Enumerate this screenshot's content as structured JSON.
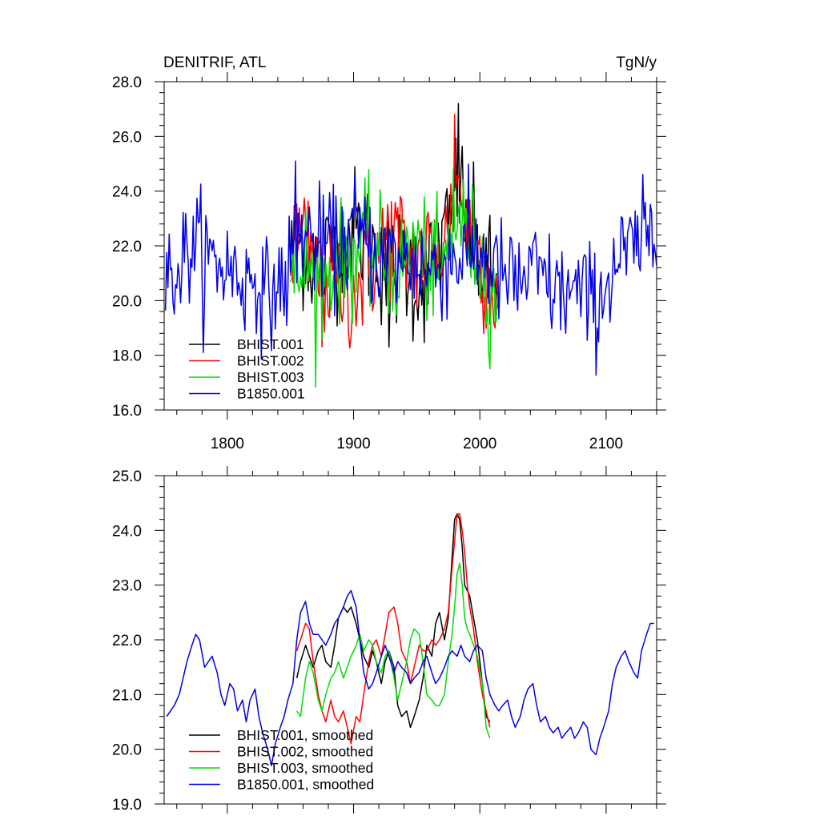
{
  "chart_data": [
    {
      "type": "line",
      "title": "DENITRIF, ATL",
      "units": "TgN/y",
      "xlabel": "",
      "ylabel": "",
      "xlim": [
        1750,
        2140
      ],
      "ylim": [
        16.0,
        28.0
      ],
      "x_ticks": [
        1800,
        1900,
        2000,
        2100
      ],
      "x_tick_labels": [
        "1800",
        "1900",
        "2000",
        "2100"
      ],
      "y_ticks": [
        16,
        18,
        20,
        22,
        24,
        26,
        28
      ],
      "y_tick_labels": [
        "16.0",
        "18.0",
        "20.0",
        "22.0",
        "24.0",
        "26.0",
        "28.0"
      ],
      "grid": false,
      "legend_position": "bottom-left",
      "series": [
        {
          "name": "BHIST.001",
          "color": "#000000",
          "x_start": 1850,
          "x_end": 2014,
          "x_step": 1,
          "anchors_x": [
            1850,
            1860,
            1870,
            1880,
            1890,
            1900,
            1910,
            1920,
            1930,
            1940,
            1950,
            1960,
            1970,
            1975,
            1980,
            1983,
            1986,
            1990,
            1995,
            2000,
            2005,
            2010,
            2014
          ],
          "anchors_y": [
            21.8,
            22.0,
            21.3,
            21.6,
            22.3,
            22.6,
            22.2,
            21.5,
            21.0,
            21.4,
            20.6,
            21.0,
            22.1,
            22.5,
            23.9,
            24.3,
            23.6,
            22.5,
            22.2,
            21.6,
            20.8,
            20.6,
            20.2
          ],
          "peak_x": 1983,
          "peak_y": 27.2,
          "min_x": 1928,
          "min_y": 18.3,
          "amp": 1.15
        },
        {
          "name": "BHIST.002",
          "color": "#ff0000",
          "x_start": 1850,
          "x_end": 2014,
          "x_step": 1,
          "anchors_x": [
            1850,
            1858,
            1866,
            1875,
            1885,
            1895,
            1900,
            1910,
            1920,
            1928,
            1935,
            1945,
            1955,
            1965,
            1975,
            1980,
            1983,
            1986,
            1990,
            1995,
            2000,
            2005,
            2010
          ],
          "anchors_y": [
            21.9,
            22.4,
            21.6,
            20.8,
            20.6,
            20.4,
            20.3,
            21.0,
            21.7,
            22.5,
            22.3,
            21.5,
            21.8,
            21.8,
            22.4,
            23.8,
            24.3,
            23.8,
            22.8,
            22.1,
            21.6,
            20.9,
            20.4
          ],
          "peak_x": 1980,
          "peak_y": 26.8,
          "min_x": 1875,
          "min_y": 18.3,
          "amp": 1.1
        },
        {
          "name": "BHIST.003",
          "color": "#00dd00",
          "x_start": 1850,
          "x_end": 2014,
          "x_step": 1,
          "anchors_x": [
            1850,
            1855,
            1862,
            1870,
            1880,
            1890,
            1900,
            1908,
            1915,
            1925,
            1935,
            1945,
            1950,
            1960,
            1970,
            1978,
            1982,
            1987,
            1995,
            2000,
            2005,
            2010
          ],
          "anchors_y": [
            20.7,
            20.6,
            21.6,
            20.5,
            21.0,
            21.4,
            21.6,
            22.1,
            21.8,
            21.6,
            21.0,
            21.8,
            22.2,
            21.2,
            21.0,
            22.4,
            23.4,
            22.6,
            22.0,
            21.6,
            20.4,
            20.2
          ],
          "peak_x": 1979,
          "peak_y": 24.8,
          "min_x": 2008,
          "min_y": 17.5,
          "amp": 1.05
        },
        {
          "name": "B1850.001",
          "color": "#0000ee",
          "x_start": 1751,
          "x_end": 2140,
          "x_step": 1,
          "anchors_x": [
            1751,
            1760,
            1770,
            1778,
            1785,
            1795,
            1805,
            1815,
            1823,
            1830,
            1838,
            1845,
            1850,
            1858,
            1865,
            1875,
            1885,
            1895,
            1900,
            1910,
            1920,
            1930,
            1940,
            1950,
            1960,
            1970,
            1980,
            1990,
            2000,
            2010,
            2020,
            2030,
            2040,
            2050,
            2060,
            2070,
            2080,
            2093,
            2100,
            2110,
            2120,
            2130,
            2136
          ],
          "anchors_y": [
            20.6,
            21.1,
            21.9,
            22.0,
            21.5,
            21.3,
            21.1,
            20.6,
            21.0,
            20.1,
            20.4,
            20.6,
            21.3,
            22.6,
            22.2,
            22.0,
            22.0,
            22.2,
            22.7,
            22.1,
            21.6,
            21.6,
            21.4,
            21.5,
            21.0,
            21.3,
            21.6,
            21.7,
            21.8,
            21.2,
            20.8,
            20.6,
            21.0,
            20.8,
            20.3,
            20.3,
            20.2,
            19.9,
            20.6,
            21.5,
            21.8,
            22.2,
            22.3
          ],
          "peak_x": 1854,
          "peak_y": 25.1,
          "min_x": 1781,
          "min_y": 18.1,
          "amp": 1.0
        }
      ]
    },
    {
      "type": "line",
      "title": "",
      "xlabel": "",
      "ylabel": "",
      "xlim": [
        1750,
        2140
      ],
      "ylim": [
        19.0,
        25.0
      ],
      "x_ticks": [
        1800,
        1900,
        2000,
        2100
      ],
      "x_tick_labels": [],
      "y_ticks": [
        19,
        20,
        21,
        22,
        23,
        24,
        25
      ],
      "y_tick_labels": [
        "19.0",
        "20.0",
        "21.0",
        "22.0",
        "23.0",
        "24.0",
        "25.0"
      ],
      "grid": false,
      "legend_position": "bottom-left",
      "series": [
        {
          "name": "BHIST.001, smoothed",
          "color": "#000000",
          "x": [
            1855,
            1858,
            1862,
            1865,
            1868,
            1872,
            1875,
            1878,
            1882,
            1885,
            1888,
            1892,
            1895,
            1898,
            1902,
            1905,
            1908,
            1912,
            1915,
            1918,
            1922,
            1925,
            1928,
            1932,
            1935,
            1938,
            1942,
            1945,
            1948,
            1952,
            1955,
            1958,
            1962,
            1965,
            1968,
            1972,
            1975,
            1978,
            1980,
            1982,
            1984,
            1986,
            1988,
            1990,
            1992,
            1995,
            1998,
            2002,
            2005,
            2008
          ],
          "y": [
            21.3,
            21.6,
            21.9,
            21.7,
            21.5,
            21.8,
            21.9,
            21.6,
            21.5,
            21.9,
            22.4,
            22.6,
            22.5,
            22.6,
            22.3,
            22.0,
            21.7,
            21.5,
            21.8,
            21.6,
            21.2,
            21.6,
            21.8,
            21.5,
            20.8,
            20.6,
            20.7,
            20.4,
            20.6,
            20.9,
            21.3,
            21.9,
            21.7,
            22.3,
            22.5,
            22.0,
            22.4,
            23.5,
            24.2,
            24.3,
            24.2,
            23.7,
            23.0,
            22.9,
            22.8,
            22.4,
            22.0,
            21.2,
            20.6,
            20.5
          ]
        },
        {
          "name": "BHIST.002, smoothed",
          "color": "#ff0000",
          "x": [
            1855,
            1858,
            1862,
            1865,
            1868,
            1872,
            1875,
            1878,
            1882,
            1885,
            1888,
            1892,
            1895,
            1898,
            1902,
            1905,
            1908,
            1912,
            1915,
            1918,
            1922,
            1925,
            1928,
            1932,
            1935,
            1938,
            1942,
            1945,
            1948,
            1952,
            1955,
            1958,
            1962,
            1965,
            1968,
            1972,
            1975,
            1978,
            1980,
            1982,
            1984,
            1986,
            1988,
            1990,
            1992,
            1995,
            1998,
            2002,
            2005,
            2008
          ],
          "y": [
            21.8,
            22.0,
            22.3,
            22.2,
            21.6,
            21.0,
            20.7,
            20.5,
            20.9,
            20.6,
            20.5,
            20.7,
            20.4,
            20.1,
            20.6,
            20.5,
            21.0,
            21.6,
            21.9,
            22.0,
            21.7,
            22.1,
            22.5,
            22.6,
            22.3,
            21.8,
            21.6,
            21.2,
            21.5,
            21.9,
            21.8,
            21.8,
            22.0,
            21.9,
            22.0,
            22.2,
            22.5,
            23.3,
            23.8,
            24.3,
            24.3,
            24.0,
            23.6,
            23.0,
            22.6,
            22.2,
            21.6,
            21.0,
            20.7,
            20.4
          ]
        },
        {
          "name": "BHIST.003, smoothed",
          "color": "#00dd00",
          "x": [
            1855,
            1858,
            1862,
            1865,
            1868,
            1872,
            1875,
            1878,
            1882,
            1885,
            1888,
            1892,
            1895,
            1898,
            1902,
            1905,
            1908,
            1912,
            1915,
            1918,
            1922,
            1925,
            1928,
            1932,
            1935,
            1938,
            1942,
            1945,
            1948,
            1952,
            1955,
            1958,
            1962,
            1965,
            1968,
            1972,
            1975,
            1978,
            1980,
            1982,
            1984,
            1986,
            1988,
            1990,
            1992,
            1995,
            1998,
            2002,
            2005,
            2008
          ],
          "y": [
            20.7,
            20.6,
            21.3,
            21.6,
            21.4,
            20.9,
            20.7,
            21.0,
            21.3,
            21.4,
            21.6,
            21.3,
            21.5,
            21.7,
            21.9,
            22.1,
            21.8,
            22.0,
            21.9,
            21.6,
            21.4,
            21.7,
            21.8,
            21.3,
            20.9,
            21.2,
            21.6,
            22.0,
            22.2,
            22.1,
            21.6,
            21.0,
            20.9,
            20.8,
            20.8,
            21.0,
            21.6,
            22.1,
            22.6,
            23.2,
            23.4,
            23.0,
            22.4,
            22.2,
            22.1,
            21.9,
            21.7,
            21.2,
            20.4,
            20.2
          ]
        },
        {
          "name": "B1850.001, smoothed",
          "color": "#0000ee",
          "x": [
            1752,
            1755,
            1758,
            1762,
            1765,
            1768,
            1772,
            1775,
            1778,
            1782,
            1785,
            1788,
            1792,
            1795,
            1798,
            1802,
            1805,
            1808,
            1812,
            1815,
            1818,
            1822,
            1825,
            1828,
            1832,
            1835,
            1838,
            1842,
            1845,
            1848,
            1852,
            1855,
            1858,
            1862,
            1865,
            1868,
            1872,
            1875,
            1878,
            1882,
            1885,
            1888,
            1892,
            1895,
            1898,
            1902,
            1905,
            1908,
            1912,
            1915,
            1918,
            1922,
            1925,
            1928,
            1932,
            1935,
            1938,
            1942,
            1945,
            1948,
            1952,
            1955,
            1958,
            1962,
            1965,
            1968,
            1972,
            1975,
            1978,
            1982,
            1985,
            1988,
            1992,
            1995,
            1998,
            2002,
            2005,
            2008,
            2012,
            2015,
            2018,
            2022,
            2025,
            2028,
            2032,
            2035,
            2038,
            2042,
            2045,
            2048,
            2052,
            2055,
            2058,
            2062,
            2065,
            2068,
            2072,
            2075,
            2078,
            2082,
            2085,
            2088,
            2092,
            2095,
            2098,
            2102,
            2105,
            2108,
            2112,
            2115,
            2118,
            2122,
            2125,
            2128,
            2132,
            2135,
            2138
          ],
          "y": [
            20.6,
            20.7,
            20.8,
            21.0,
            21.3,
            21.6,
            21.9,
            22.1,
            22.0,
            21.5,
            21.6,
            21.7,
            21.4,
            21.0,
            20.8,
            21.2,
            21.1,
            20.7,
            20.9,
            20.5,
            20.9,
            21.1,
            20.6,
            20.3,
            20.0,
            19.7,
            20.1,
            20.4,
            20.6,
            20.9,
            21.2,
            22.0,
            22.5,
            22.7,
            22.3,
            22.1,
            22.1,
            22.0,
            21.9,
            22.1,
            22.3,
            22.4,
            22.6,
            22.8,
            22.9,
            22.6,
            22.0,
            21.4,
            21.1,
            21.2,
            21.4,
            21.7,
            21.9,
            21.7,
            21.4,
            21.6,
            21.5,
            21.4,
            21.2,
            21.3,
            21.4,
            21.6,
            21.7,
            21.4,
            21.2,
            21.3,
            21.5,
            21.7,
            21.8,
            21.7,
            21.9,
            21.7,
            21.6,
            21.8,
            21.9,
            21.8,
            21.3,
            21.0,
            20.8,
            20.7,
            20.8,
            20.9,
            20.6,
            20.4,
            20.6,
            20.9,
            21.1,
            21.2,
            20.8,
            20.5,
            20.6,
            20.4,
            20.3,
            20.4,
            20.2,
            20.3,
            20.4,
            20.2,
            20.3,
            20.5,
            20.4,
            20.0,
            19.9,
            20.2,
            20.4,
            20.7,
            21.2,
            21.5,
            21.7,
            21.8,
            21.6,
            21.4,
            21.3,
            21.8,
            22.1,
            22.3,
            22.3
          ]
        }
      ]
    }
  ]
}
